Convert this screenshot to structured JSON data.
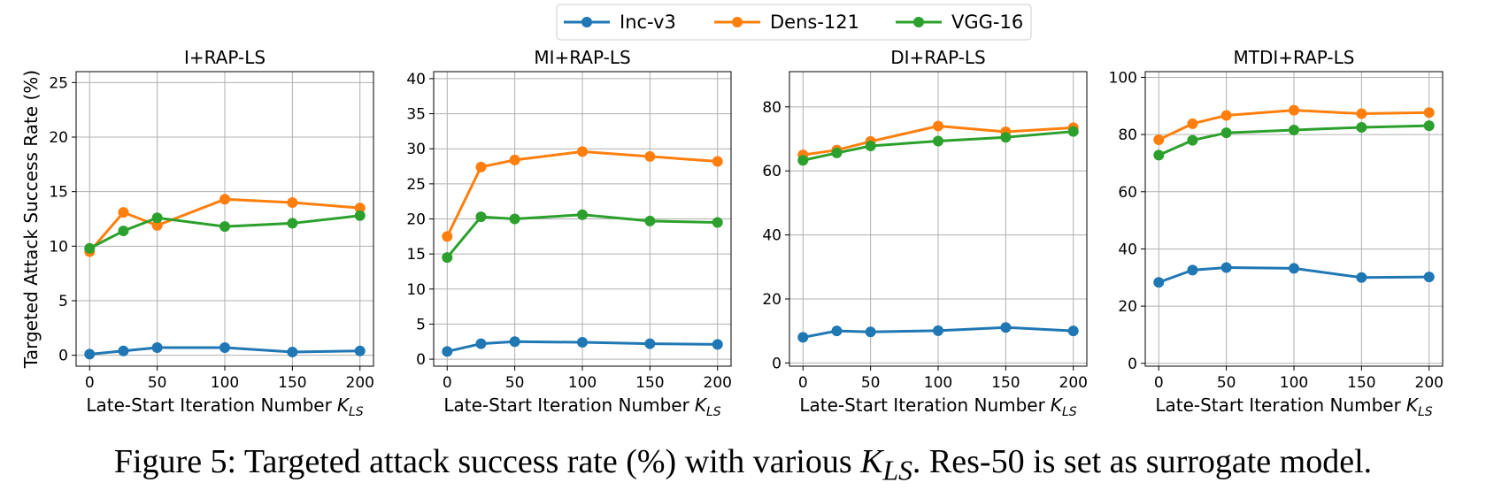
{
  "chart_data": [
    {
      "type": "line",
      "title": "I+RAP-LS",
      "ylabel": "Targeted Attack Success Rate (%)",
      "xlabel": {
        "text": "Late-Start Iteration Number",
        "var": "K",
        "sub": "LS"
      },
      "x": [
        0,
        25,
        50,
        100,
        150,
        200
      ],
      "xlim": [
        -10,
        210
      ],
      "xticks": [
        0,
        50,
        100,
        150,
        200
      ],
      "ylim": [
        -1,
        26
      ],
      "yticks": [
        0,
        5,
        10,
        15,
        20,
        25
      ],
      "grid": true,
      "series": [
        {
          "name": "Inc-v3",
          "color": "#1f77b4",
          "values": [
            0.1,
            0.4,
            0.7,
            0.7,
            0.3,
            0.4
          ]
        },
        {
          "name": "Dens-121",
          "color": "#ff7f0e",
          "values": [
            9.5,
            13.1,
            11.9,
            14.3,
            14.0,
            13.5
          ]
        },
        {
          "name": "VGG-16",
          "color": "#2ca02c",
          "values": [
            9.8,
            11.4,
            12.6,
            11.8,
            12.1,
            12.8
          ]
        }
      ]
    },
    {
      "type": "line",
      "title": "MI+RAP-LS",
      "xlabel": {
        "text": "Late-Start Iteration Number",
        "var": "K",
        "sub": "LS"
      },
      "x": [
        0,
        25,
        50,
        100,
        150,
        200
      ],
      "xlim": [
        -10,
        210
      ],
      "xticks": [
        0,
        50,
        100,
        150,
        200
      ],
      "ylim": [
        -1,
        41
      ],
      "yticks": [
        0,
        5,
        10,
        15,
        20,
        25,
        30,
        35,
        40
      ],
      "grid": true,
      "series": [
        {
          "name": "Inc-v3",
          "color": "#1f77b4",
          "values": [
            1.1,
            2.2,
            2.5,
            2.4,
            2.2,
            2.1
          ]
        },
        {
          "name": "Dens-121",
          "color": "#ff7f0e",
          "values": [
            17.5,
            27.4,
            28.4,
            29.6,
            28.9,
            28.2
          ]
        },
        {
          "name": "VGG-16",
          "color": "#2ca02c",
          "values": [
            14.5,
            20.3,
            20.0,
            20.6,
            19.7,
            19.5
          ]
        }
      ]
    },
    {
      "type": "line",
      "title": "DI+RAP-LS",
      "xlabel": {
        "text": "Late-Start Iteration Number",
        "var": "K",
        "sub": "LS"
      },
      "x": [
        0,
        25,
        50,
        100,
        150,
        200
      ],
      "xlim": [
        -10,
        210
      ],
      "xticks": [
        0,
        50,
        100,
        150,
        200
      ],
      "ylim": [
        -1,
        91
      ],
      "yticks": [
        0,
        20,
        40,
        60,
        80
      ],
      "grid": true,
      "series": [
        {
          "name": "Inc-v3",
          "color": "#1f77b4",
          "values": [
            8,
            10,
            9.7,
            10.1,
            11.1,
            10
          ]
        },
        {
          "name": "Dens-121",
          "color": "#ff7f0e",
          "values": [
            65,
            66.5,
            69.2,
            74,
            72.2,
            73.5
          ]
        },
        {
          "name": "VGG-16",
          "color": "#2ca02c",
          "values": [
            63.3,
            65.6,
            67.8,
            69.3,
            70.5,
            72.3
          ]
        }
      ]
    },
    {
      "type": "line",
      "title": "MTDI+RAP-LS",
      "xlabel": {
        "text": "Late-Start Iteration Number",
        "var": "K",
        "sub": "LS"
      },
      "x": [
        0,
        25,
        50,
        100,
        150,
        200
      ],
      "xlim": [
        -10,
        210
      ],
      "xticks": [
        0,
        50,
        100,
        150,
        200
      ],
      "ylim": [
        -1,
        102
      ],
      "yticks": [
        0,
        20,
        40,
        60,
        80,
        100
      ],
      "grid": true,
      "series": [
        {
          "name": "Inc-v3",
          "color": "#1f77b4",
          "values": [
            28.3,
            32.6,
            33.5,
            33.2,
            30,
            30.2
          ]
        },
        {
          "name": "Dens-121",
          "color": "#ff7f0e",
          "values": [
            78.2,
            83.8,
            86.7,
            88.5,
            87.3,
            87.7
          ]
        },
        {
          "name": "VGG-16",
          "color": "#2ca02c",
          "values": [
            72.8,
            78,
            80.6,
            81.6,
            82.5,
            83.1
          ]
        }
      ]
    }
  ],
  "caption": {
    "before": "Figure 5: Targeted attack success rate (%) with various ",
    "var": "K",
    "sub": "LS",
    "after": ". Res-50 is set as surrogate model."
  }
}
